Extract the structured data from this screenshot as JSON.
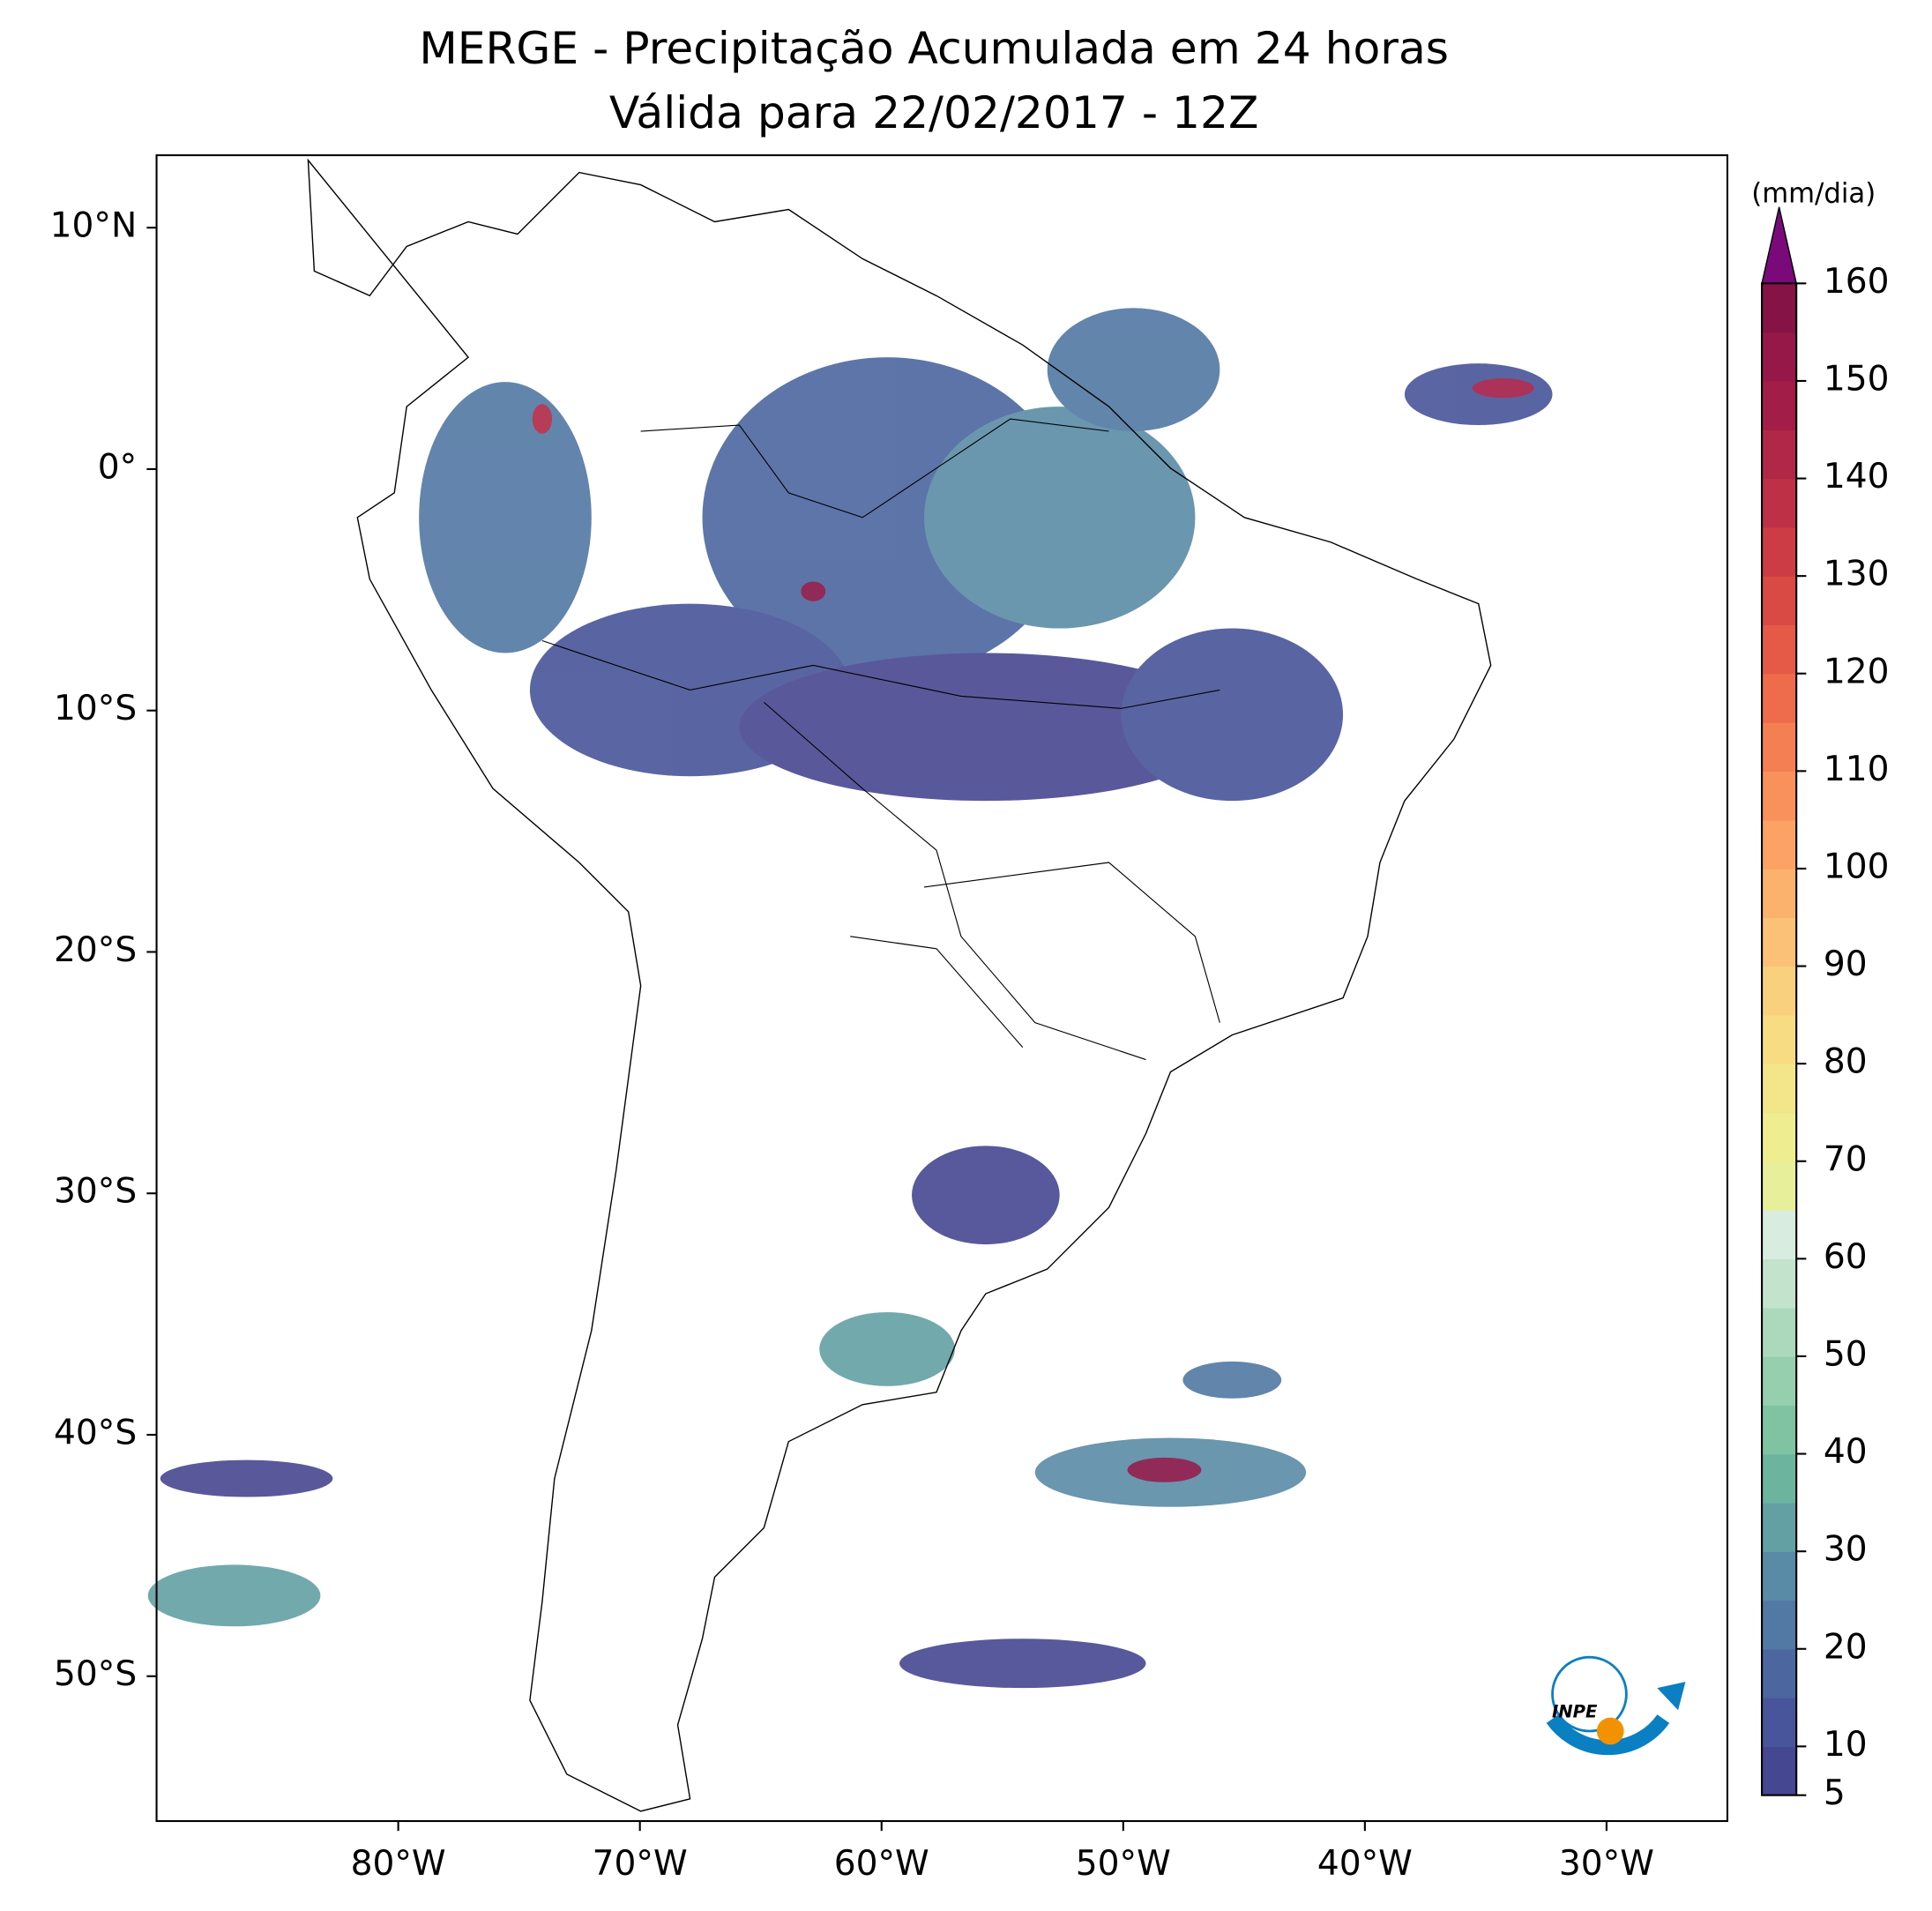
{
  "chart_data": {
    "type": "map",
    "title": "MERGE - Precipitação Acumulada em 24 horas",
    "subtitle": "Válida para 22/02/2017 - 12Z",
    "xlim": [
      -90,
      -25
    ],
    "ylim": [
      -56,
      13
    ],
    "xticks": [
      {
        "value": -80,
        "label": "80°W"
      },
      {
        "value": -70,
        "label": "70°W"
      },
      {
        "value": -60,
        "label": "60°W"
      },
      {
        "value": -50,
        "label": "50°W"
      },
      {
        "value": -40,
        "label": "40°W"
      },
      {
        "value": -30,
        "label": "30°W"
      }
    ],
    "yticks": [
      {
        "value": 10,
        "label": "10°N"
      },
      {
        "value": 0,
        "label": "0°"
      },
      {
        "value": -10,
        "label": "10°S"
      },
      {
        "value": -20,
        "label": "20°S"
      },
      {
        "value": -30,
        "label": "30°S"
      },
      {
        "value": -40,
        "label": "40°S"
      },
      {
        "value": -50,
        "label": "50°S"
      }
    ],
    "colorbar": {
      "label": "(mm/dia)",
      "lim": [
        5,
        160
      ],
      "ticks": [
        5,
        10,
        20,
        30,
        40,
        50,
        60,
        70,
        80,
        90,
        100,
        110,
        120,
        130,
        140,
        150,
        160
      ],
      "levels": [
        5,
        10,
        15,
        20,
        25,
        30,
        35,
        40,
        45,
        50,
        55,
        60,
        65,
        70,
        75,
        80,
        85,
        90,
        95,
        100,
        105,
        110,
        115,
        120,
        125,
        130,
        135,
        140,
        145,
        150,
        155,
        160
      ],
      "colors": [
        "#464791",
        "#48559a",
        "#4c66a0",
        "#5278a4",
        "#5a8ba6",
        "#62a0a4",
        "#6db49f",
        "#7fc3a2",
        "#96cfae",
        "#acd9bc",
        "#c3e3cd",
        "#d8ecdf",
        "#e7ef9a",
        "#eeed8f",
        "#f3e68a",
        "#f7dc84",
        "#f9d07e",
        "#fbc176",
        "#fbb26d",
        "#fba264",
        "#f8915b",
        "#f47f53",
        "#ee6c4c",
        "#e55a47",
        "#d94a45",
        "#cc3c45",
        "#be3046",
        "#b02747",
        "#a21e48",
        "#951848",
        "#861345"
      ],
      "extend_color": "#7a0a7a"
    },
    "logo": "INPE"
  }
}
